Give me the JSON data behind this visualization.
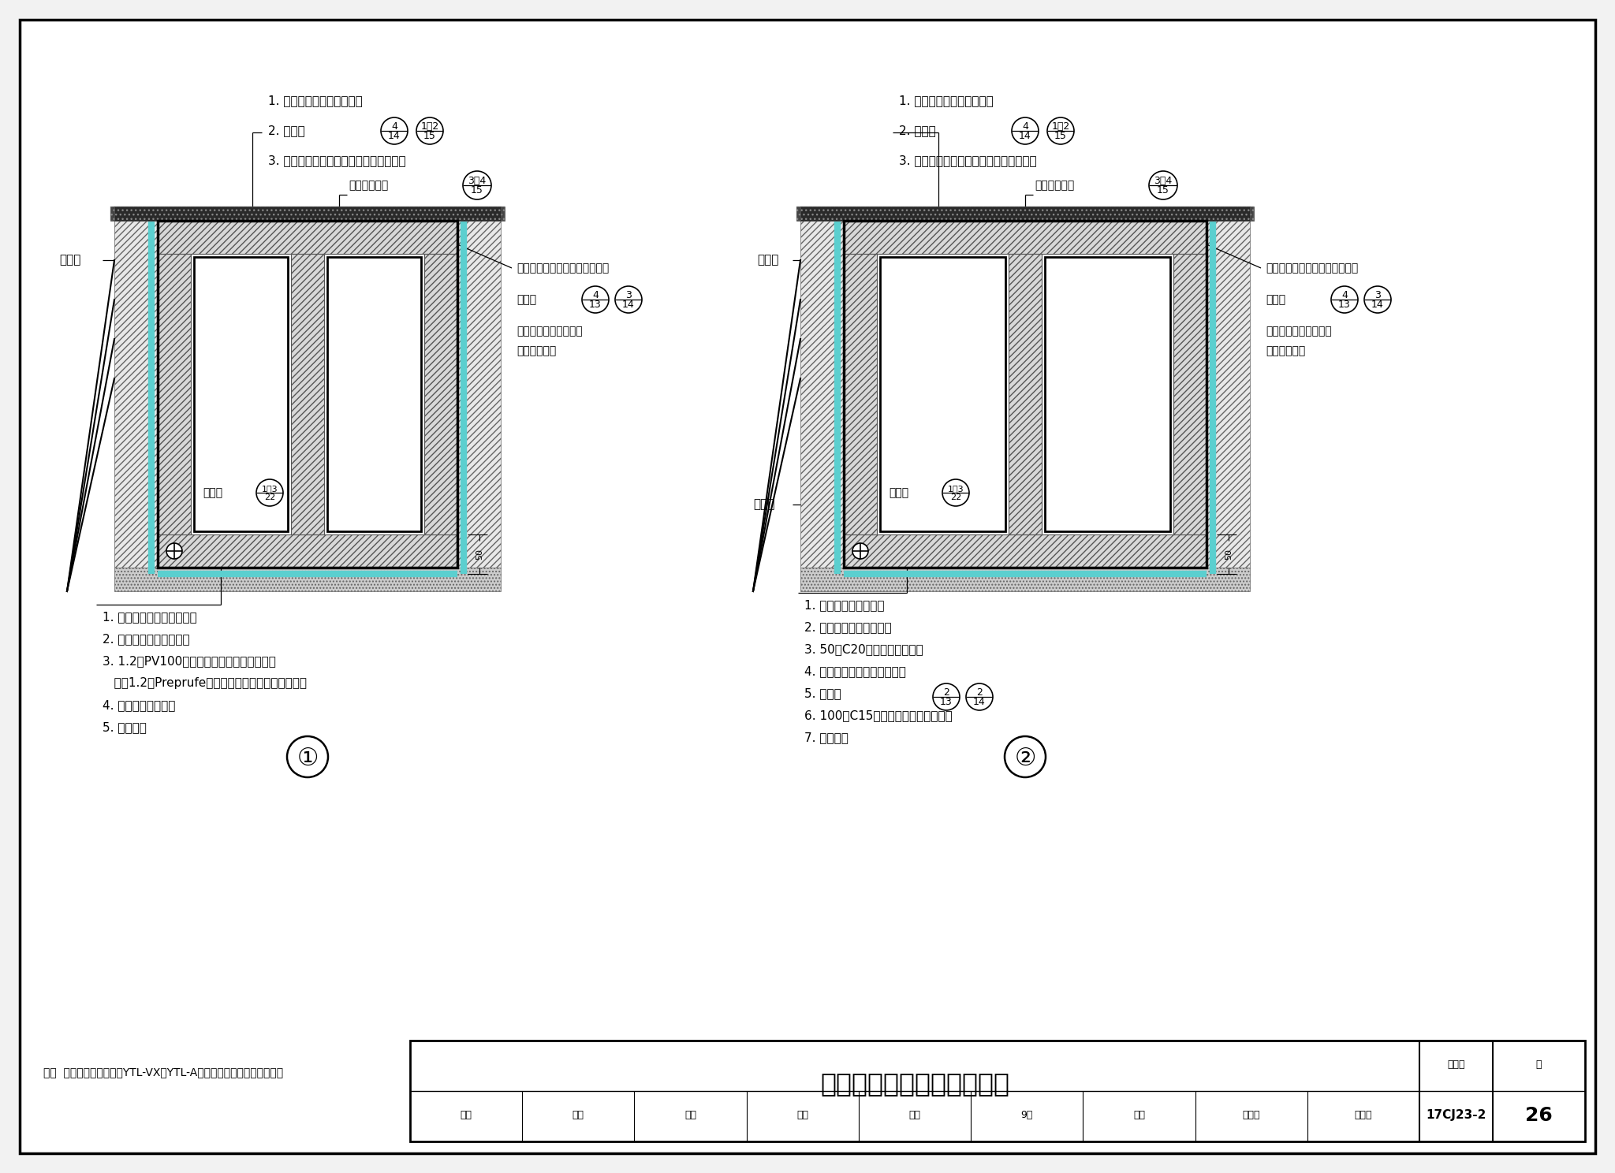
{
  "bg_color": "#f2f2f2",
  "page_bg": "#ffffff",
  "title_text": "综合管廊外防外贴防水构造",
  "atlas_no": "17CJ23-2",
  "page_no": "26",
  "note_text": "注：  在基层潮湿条件下，YTL-VX和YTL-A自粘卷材可采用湿铺法施工。",
  "teal_color": "#5BCFCF",
  "diagram1_bottom_labels": [
    "1. 面层（见具体工程设计）",
    "2. 自防水钢筋混凝土底板",
    "3. 1.2厚PV100预铺高分子自粘胶膜防水卷材",
    "   （或1.2厚Preprufe预铺高分子自粘胶膜防水卷材）",
    "4. 混凝土垫层，收平",
    "5. 素土夯实"
  ],
  "diagram2_bottom_labels": [
    "1. 面层见具体工程设计",
    "2. 自防水钢筋混凝土底板",
    "3. 50厚C20细石混凝土保护层",
    "4. 隔离层（见具体工程设计）",
    "5. 防水层",
    "6. 100厚C15素混凝土垫层，收平压光",
    "7. 素土夯实"
  ]
}
